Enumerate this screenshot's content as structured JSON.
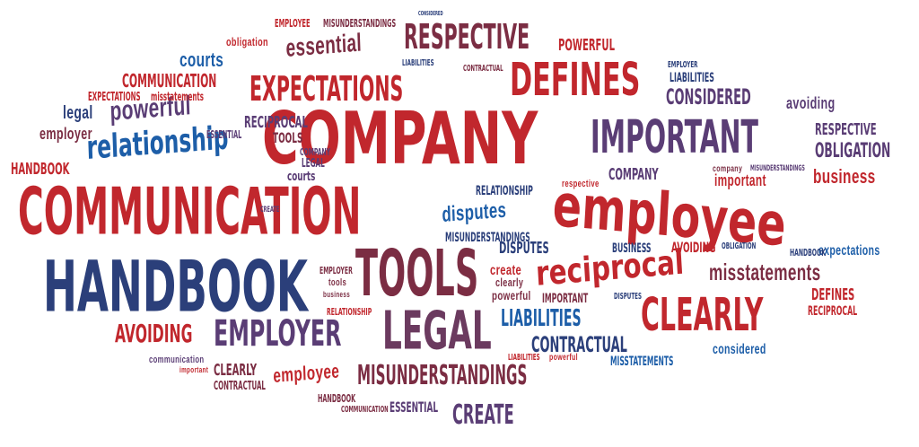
{
  "colors": {
    "red": "#c1272d",
    "maroon": "#7b2d43",
    "plum": "#6b3a5f",
    "navy": "#2b3f7a",
    "blue": "#1d5ea8",
    "purple": "#5a3d75"
  },
  "words": {
    "company": "COMPANY",
    "communication": "COMMUNICATION",
    "handbook": "HANDBOOK",
    "employee_lower": "employee",
    "tools": "TOOLS",
    "legal": "LEGAL",
    "important": "IMPORTANT",
    "defines": "DEFINES",
    "expectations": "EXPECTATIONS",
    "respective": "RESPECTIVE",
    "clearly": "CLEARLY",
    "reciprocal_lower": "reciprocal",
    "relationship_lower": "relationship",
    "employer": "EMPLOYER",
    "misunderstandings": "MISUNDERSTANDINGS",
    "avoiding": "AVOIDING",
    "essential_lower": "essential",
    "powerful_lower": "powerful",
    "misstatements_lower": "misstatements",
    "liabilities": "LIABILITIES",
    "contractual": "CONTRACTUAL",
    "considered": "CONSIDERED",
    "create": "CREATE",
    "business_lower": "business",
    "obligation": "OBLIGATION",
    "reciprocal": "RECIPROCAL",
    "courts_lower": "courts",
    "legal_lower": "legal",
    "employer_lower": "employer",
    "disputes_lower": "disputes",
    "relationship": "RELATIONSHIP",
    "company_mid": "COMPANY",
    "employee_upper": "EMPLOYEE",
    "misunderstandings_small": "MISUNDERSTANDINGS",
    "obligation_lower": "obligation",
    "powerful": "POWERFUL",
    "essential": "ESSENTIAL",
    "expectations_lower": "expectations",
    "misstatements": "MISSTATEMENTS",
    "important_lower": "important",
    "create_lower": "create",
    "clearly_lower": "clearly",
    "considered_lower": "considered",
    "defines_small": "DEFINES",
    "avoiding_lower": "avoiding",
    "business": "BUSINESS",
    "disputes": "DISPUTES",
    "communication_lower": "communication",
    "handbook_small": "HANDBOOK",
    "liabilities_lower": "liabilities",
    "courts": "COURTS",
    "tools_lower": "tools",
    "company_lower": "company",
    "respective_lower": "respective",
    "reciprocal_small": "reciprocal",
    "contractual_small": "CONTRACTUAL",
    "create_small": "CREATE"
  }
}
